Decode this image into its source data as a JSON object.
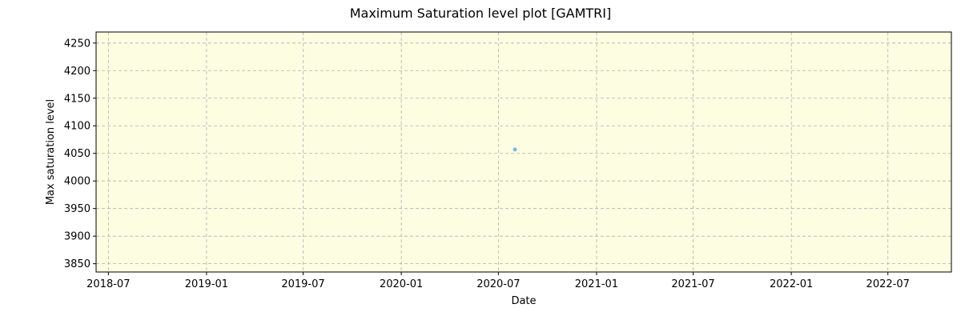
{
  "chart_data": {
    "type": "scatter",
    "title": "Maximum Saturation level plot [GAMTRI]",
    "xlabel": "Date",
    "ylabel": "Max saturation level",
    "x_tick_labels": [
      "2018-07",
      "2019-01",
      "2019-07",
      "2020-01",
      "2020-07",
      "2021-01",
      "2021-07",
      "2022-01",
      "2022-07"
    ],
    "y_tick_labels": [
      "3850",
      "3900",
      "3950",
      "4000",
      "4050",
      "4100",
      "4150",
      "4200",
      "4250"
    ],
    "ylim": [
      3835,
      4270
    ],
    "xlim": [
      "2018-06-08",
      "2022-10-28"
    ],
    "grid": true,
    "background_color": "#fdfde2",
    "point_color": "#7aaed6",
    "points": [
      {
        "x": "2020-08-01",
        "y": 4057
      }
    ]
  }
}
